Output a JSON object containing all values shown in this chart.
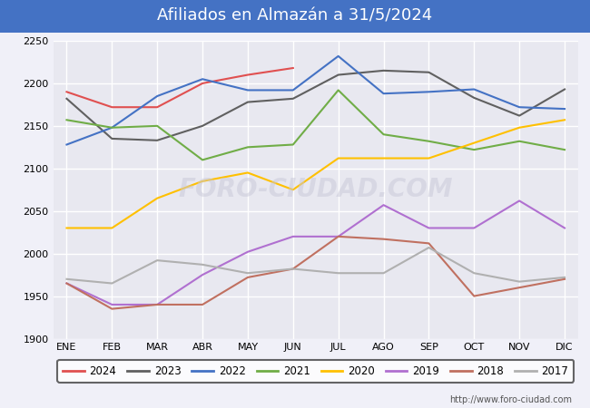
{
  "title": "Afiliados en Almazán a 31/5/2024",
  "title_bg_color": "#4472c4",
  "title_text_color": "white",
  "ylim": [
    1900,
    2250
  ],
  "yticks": [
    1900,
    1950,
    2000,
    2050,
    2100,
    2150,
    2200,
    2250
  ],
  "months": [
    "ENE",
    "FEB",
    "MAR",
    "ABR",
    "MAY",
    "JUN",
    "JUL",
    "AGO",
    "SEP",
    "OCT",
    "NOV",
    "DIC"
  ],
  "watermark": "FORO-CIUDAD.COM",
  "url": "http://www.foro-ciudad.com",
  "bg_color": "#f0f0f8",
  "plot_bg_color": "#e8e8f0",
  "series": {
    "2024": {
      "color": "#e05050",
      "data": [
        2190,
        2172,
        2172,
        2200,
        2210,
        2218,
        null,
        null,
        null,
        null,
        null,
        null
      ]
    },
    "2023": {
      "color": "#606060",
      "data": [
        2182,
        2135,
        2133,
        2150,
        2178,
        2182,
        2210,
        2215,
        2213,
        2183,
        2162,
        2193
      ]
    },
    "2022": {
      "color": "#4472c4",
      "data": [
        2128,
        2148,
        2185,
        2205,
        2192,
        2192,
        2232,
        2188,
        2190,
        2193,
        2172,
        2170
      ]
    },
    "2021": {
      "color": "#70ad47",
      "data": [
        2157,
        2148,
        2150,
        2110,
        2125,
        2128,
        2192,
        2140,
        2132,
        2122,
        2132,
        2122
      ]
    },
    "2020": {
      "color": "#ffc000",
      "data": [
        2030,
        2030,
        2065,
        2085,
        2095,
        2075,
        2112,
        2112,
        2112,
        2130,
        2148,
        2157
      ]
    },
    "2019": {
      "color": "#b070d0",
      "data": [
        1965,
        1940,
        1940,
        1975,
        2002,
        2020,
        2020,
        2057,
        2030,
        2030,
        2062,
        2030
      ]
    },
    "2018": {
      "color": "#c07060",
      "data": [
        1965,
        1935,
        1940,
        1940,
        1972,
        1982,
        2020,
        2017,
        2012,
        1950,
        1960,
        1970
      ]
    },
    "2017": {
      "color": "#b0b0b0",
      "data": [
        1970,
        1965,
        1992,
        1987,
        1977,
        1982,
        1977,
        1977,
        2007,
        1977,
        1967,
        1972
      ]
    }
  }
}
